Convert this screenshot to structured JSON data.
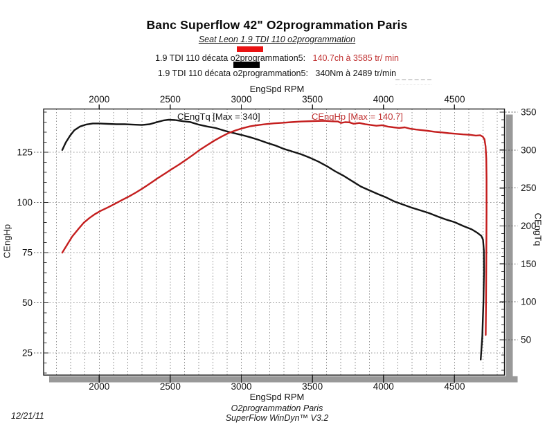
{
  "page": {
    "title": "Banc Superflow 42\" O2programmation Paris",
    "subtitle": "Seat Leon 1.9 TDI 110 o2programmation",
    "date": "12/21/11",
    "footer_line1": "O2programmation Paris",
    "footer_line2": "SuperFlow WinDyn™ V3.2"
  },
  "legend": {
    "entries": [
      {
        "swatch_color": "#ea1313",
        "label": "1.9 TDI 110 décata o2programmation5:",
        "value": "140.7ch à 3585 tr/ min",
        "value_color": "#c03030"
      },
      {
        "swatch_color": "#000000",
        "label": "1.9 TDI 110 décata o2programmation5:",
        "value": "340Nm à 2489 tr/min",
        "value_color": "#141414"
      }
    ]
  },
  "chart_data": {
    "type": "line",
    "title": "Banc Superflow 42\" O2programmation Paris",
    "subtitle": "Seat Leon 1.9 TDI 110 o2programmation",
    "x_axis": {
      "label": "EngSpd RPM",
      "min": 1609,
      "max": 4851,
      "major_ticks": [
        2000,
        2500,
        3000,
        3500,
        4000,
        4500
      ],
      "minor_grid_step": 100,
      "grid": true
    },
    "left_axis": {
      "label": "CEngHp",
      "min": 14.0,
      "max": 146.55,
      "major_ticks": [
        25,
        50,
        75,
        100,
        125
      ],
      "minor_tick_step": 5,
      "grid": true
    },
    "right_axis": {
      "label": "CEngTq",
      "min": 3.5,
      "max": 354.1,
      "major_ticks": [
        50,
        100,
        150,
        200,
        250,
        300,
        350
      ],
      "minor_tick_step": 10,
      "grid": false
    },
    "annotations": [
      {
        "text": "CEngTq [Max = 340]",
        "color": "#141414"
      },
      {
        "text": "CEngHp [Max = 140.7]",
        "color": "#c03030"
      }
    ],
    "series": [
      {
        "name": "1.9 TDI 110 décata o2programmation5 – CEngTq",
        "axis": "right",
        "unit": "Nm",
        "color": "#141414",
        "max": {
          "value": 340,
          "rpm": 2489
        },
        "points": [
          [
            1740,
            300
          ],
          [
            1765,
            310
          ],
          [
            1795,
            319
          ],
          [
            1825,
            326
          ],
          [
            1865,
            331
          ],
          [
            1905,
            333.5
          ],
          [
            1955,
            335
          ],
          [
            2000,
            335
          ],
          [
            2060,
            334.5
          ],
          [
            2120,
            334
          ],
          [
            2180,
            334
          ],
          [
            2240,
            333.5
          ],
          [
            2300,
            333
          ],
          [
            2355,
            334
          ],
          [
            2400,
            336.5
          ],
          [
            2450,
            339
          ],
          [
            2489,
            340
          ],
          [
            2535,
            339.5
          ],
          [
            2590,
            338
          ],
          [
            2640,
            337
          ],
          [
            2700,
            333.5
          ],
          [
            2760,
            331
          ],
          [
            2820,
            329
          ],
          [
            2900,
            324.5
          ],
          [
            3000,
            320
          ],
          [
            3060,
            317
          ],
          [
            3120,
            313.5
          ],
          [
            3180,
            309.5
          ],
          [
            3240,
            306
          ],
          [
            3300,
            301.5
          ],
          [
            3360,
            298
          ],
          [
            3420,
            294.5
          ],
          [
            3480,
            290
          ],
          [
            3540,
            285
          ],
          [
            3600,
            279
          ],
          [
            3660,
            272
          ],
          [
            3720,
            266
          ],
          [
            3780,
            259
          ],
          [
            3840,
            252
          ],
          [
            3900,
            247
          ],
          [
            3960,
            242
          ],
          [
            4020,
            237.5
          ],
          [
            4080,
            232
          ],
          [
            4140,
            228
          ],
          [
            4200,
            224
          ],
          [
            4260,
            220.5
          ],
          [
            4320,
            217
          ],
          [
            4380,
            212.5
          ],
          [
            4440,
            208.5
          ],
          [
            4500,
            205
          ],
          [
            4560,
            200
          ],
          [
            4620,
            195.5
          ],
          [
            4660,
            191
          ],
          [
            4688,
            187
          ],
          [
            4700,
            182
          ],
          [
            4706,
            168
          ],
          [
            4707,
            140
          ],
          [
            4703,
            100
          ],
          [
            4695,
            55
          ],
          [
            4684,
            24
          ]
        ]
      },
      {
        "name": "1.9 TDI 110 décata o2programmation5 – CEngHp",
        "axis": "left",
        "unit": "ch",
        "color": "#c41e1e",
        "max": {
          "value": 140.7,
          "rpm": 3585
        },
        "points": [
          [
            1740,
            75
          ],
          [
            1775,
            79
          ],
          [
            1810,
            83
          ],
          [
            1850,
            86.5
          ],
          [
            1890,
            89.8
          ],
          [
            1930,
            92.2
          ],
          [
            1970,
            94.2
          ],
          [
            2010,
            95.8
          ],
          [
            2060,
            97.5
          ],
          [
            2110,
            99.3
          ],
          [
            2160,
            101.2
          ],
          [
            2210,
            103
          ],
          [
            2260,
            105
          ],
          [
            2310,
            107.2
          ],
          [
            2360,
            109.6
          ],
          [
            2410,
            112
          ],
          [
            2460,
            114.3
          ],
          [
            2510,
            116.6
          ],
          [
            2560,
            118.8
          ],
          [
            2610,
            121.2
          ],
          [
            2660,
            123.7
          ],
          [
            2710,
            126.3
          ],
          [
            2760,
            128.6
          ],
          [
            2810,
            130.8
          ],
          [
            2860,
            132.8
          ],
          [
            2910,
            134.6
          ],
          [
            2960,
            135.9
          ],
          [
            3010,
            137
          ],
          [
            3060,
            137.9
          ],
          [
            3110,
            138.5
          ],
          [
            3170,
            139
          ],
          [
            3230,
            139.4
          ],
          [
            3290,
            139.7
          ],
          [
            3350,
            140
          ],
          [
            3420,
            140.3
          ],
          [
            3500,
            140.5
          ],
          [
            3585,
            140.7
          ],
          [
            3640,
            140.4
          ],
          [
            3680,
            140.3
          ],
          [
            3700,
            139.6
          ],
          [
            3730,
            140
          ],
          [
            3760,
            139.9
          ],
          [
            3790,
            139.2
          ],
          [
            3830,
            139.6
          ],
          [
            3870,
            139
          ],
          [
            3910,
            138.6
          ],
          [
            3950,
            138.2
          ],
          [
            3990,
            138.5
          ],
          [
            4030,
            137.8
          ],
          [
            4070,
            137.4
          ],
          [
            4110,
            137.1
          ],
          [
            4150,
            137.4
          ],
          [
            4190,
            136.7
          ],
          [
            4230,
            136.3
          ],
          [
            4270,
            136
          ],
          [
            4310,
            135.7
          ],
          [
            4360,
            135.2
          ],
          [
            4410,
            134.9
          ],
          [
            4460,
            134.5
          ],
          [
            4510,
            134.2
          ],
          [
            4560,
            133.9
          ],
          [
            4610,
            133.7
          ],
          [
            4650,
            133.3
          ],
          [
            4680,
            133.5
          ],
          [
            4698,
            132.8
          ],
          [
            4710,
            131.5
          ],
          [
            4718,
            128
          ],
          [
            4723,
            122
          ],
          [
            4725,
            112
          ],
          [
            4725,
            95
          ],
          [
            4723,
            70
          ],
          [
            4721,
            48
          ],
          [
            4719,
            34
          ]
        ]
      }
    ]
  }
}
